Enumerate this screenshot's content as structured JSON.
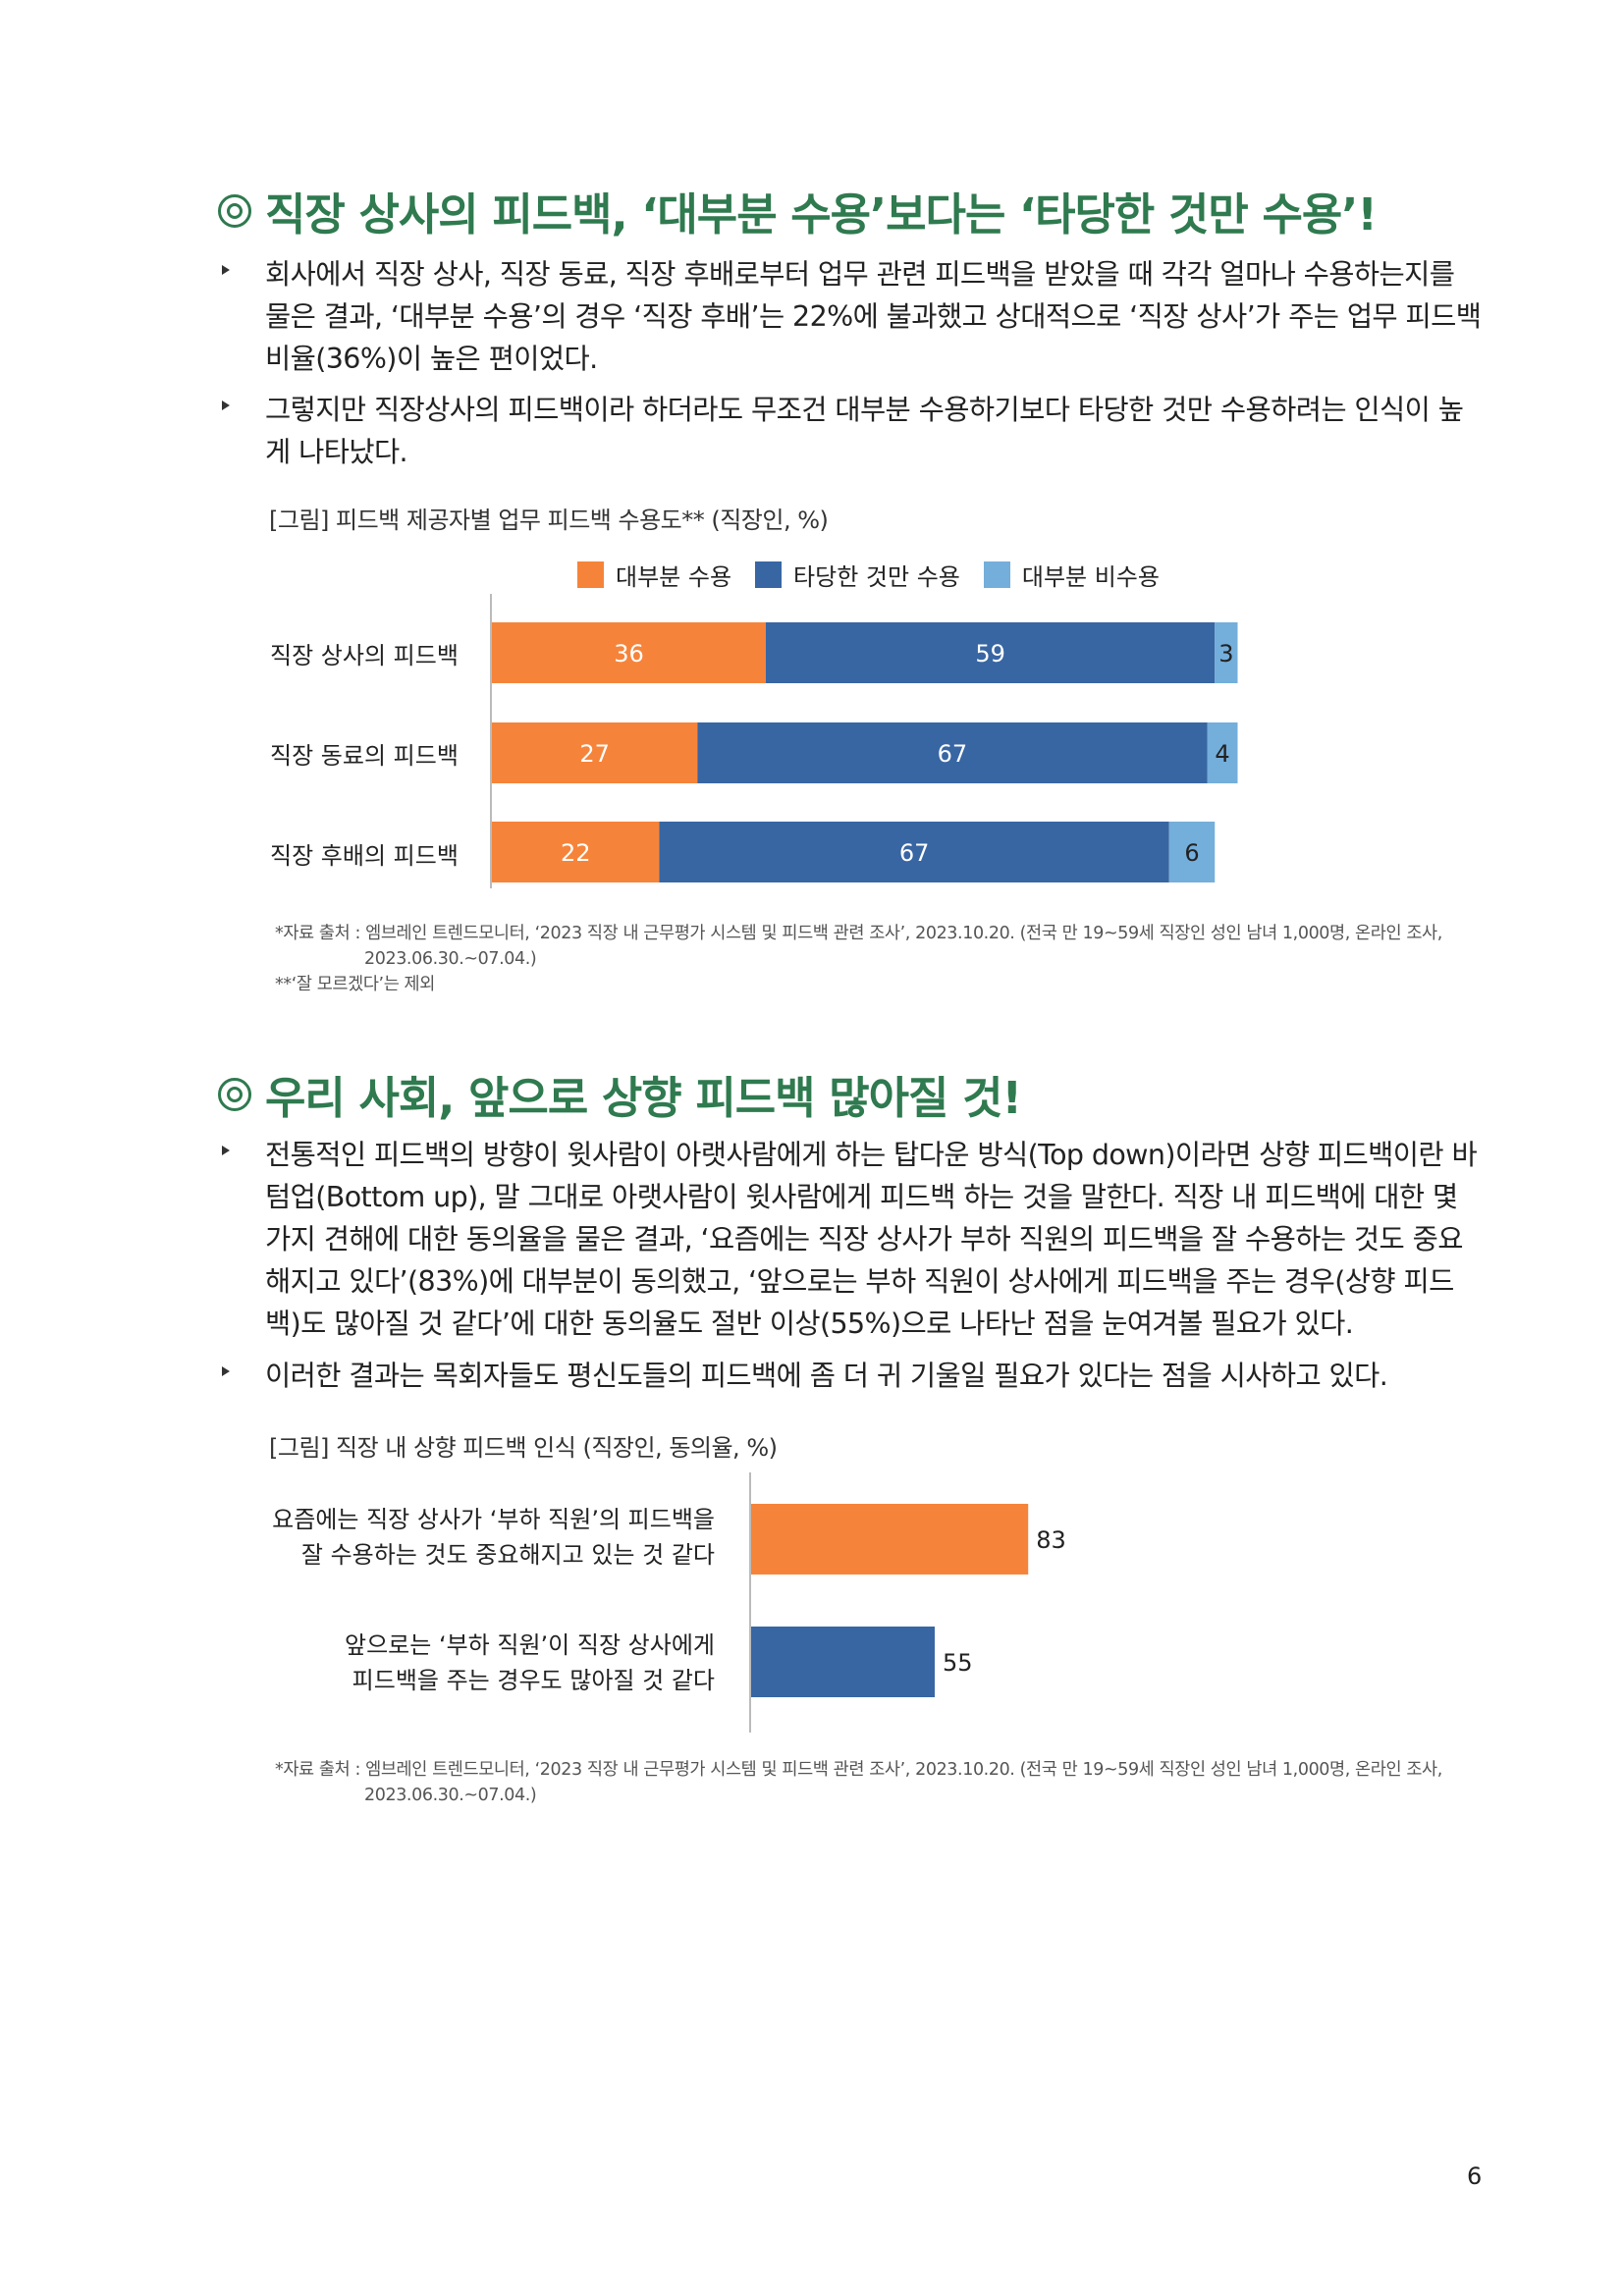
{
  "section1": {
    "heading": "직장 상사의 피드백, ‘대부분 수용’보다는 ‘타당한 것만 수용’!",
    "bullets": [
      "회사에서 직장 상사, 직장 동료, 직장 후배로부터 업무 관련 피드백을 받았을 때 각각 얼마나 수용하는지를 물은 결과, ‘대부분 수용’의 경우 ‘직장 후배’는 22%에 불과했고 상대적으로 ‘직장 상사’가 주는 업무 피드백 비율(36%)이 높은 편이었다.",
      "그렇지만 직장상사의 피드백이라 하더라도 무조건 대부분 수용하기보다 타당한 것만 수용하려는 인식이 높게 나타났다."
    ],
    "figure_caption": "[그림] 피드백 제공자별 업무 피드백 수용도** (직장인, %)",
    "source_line1": "*자료 출처 : 엠브레인 트렌드모니터, ‘2023 직장 내 근무평가 시스템 및 피드백 관련 조사’, 2023.10.20. (전국 만 19~59세 직장인 성인 남녀 1,000명, 온라인 조사,",
    "source_line2": "2023.06.30.~07.04.)",
    "note": "**‘잘 모르겠다’는 제외"
  },
  "section2": {
    "heading": "우리 사회, 앞으로 상향 피드백 많아질 것!",
    "bullets": [
      "전통적인 피드백의 방향이 윗사람이 아랫사람에게 하는 탑다운 방식(Top down)이라면 상향 피드백이란 바텀업(Bottom up), 말 그대로 아랫사람이 윗사람에게 피드백 하는 것을 말한다. 직장 내 피드백에 대한 몇 가지 견해에 대한 동의율을 물은 결과, ‘요즘에는 직장 상사가 부하 직원의 피드백을 잘 수용하는 것도 중요해지고 있다’(83%)에 대부분이 동의했고, ‘앞으로는 부하 직원이 상사에게 피드백을 주는 경우(상향 피드백)도 많아질 것 같다’에 대한 동의율도 절반 이상(55%)으로 나타난 점을 눈여겨볼 필요가 있다.",
      "이러한 결과는 목회자들도 평신도들의 피드백에 좀 더 귀 기울일 필요가 있다는 점을 시사하고 있다."
    ],
    "figure_caption": "[그림] 직장 내 상향 피드백 인식 (직장인, 동의율, %)",
    "source_line1": "*자료 출처 : 엠브레인 트렌드모니터, ‘2023 직장 내 근무평가 시스템 및 피드백 관련 조사’, 2023.10.20. (전국 만 19~59세 직장인 성인 남녀 1,000명, 온라인 조사,",
    "source_line2": "2023.06.30.~07.04.)"
  },
  "page_number": "6",
  "chart_data": [
    {
      "type": "bar",
      "orientation": "horizontal",
      "stacked": true,
      "categories": [
        "직장 상사의 피드백",
        "직장 동료의 피드백",
        "직장 후배의 피드백"
      ],
      "series": [
        {
          "name": "대부분 수용",
          "values": [
            36,
            27,
            22
          ],
          "color": "#f5843a"
        },
        {
          "name": "타당한 것만 수용",
          "values": [
            59,
            67,
            67
          ],
          "color": "#3866a3"
        },
        {
          "name": "대부분 비수용",
          "values": [
            3,
            4,
            6
          ],
          "color": "#74aedb"
        }
      ],
      "legend": "top",
      "grid": false
    },
    {
      "type": "bar",
      "orientation": "horizontal",
      "categories": [
        [
          "요즘에는 직장 상사가 ‘부하 직원’의 피드백을",
          "잘 수용하는 것도 중요해지고 있는 것 같다"
        ],
        [
          "앞으로는 ‘부하 직원’이 직장 상사에게",
          "피드백을 주는 경우도 많아질 것 같다"
        ]
      ],
      "values": [
        83,
        55
      ],
      "colors": [
        "#f5843a",
        "#3866a3"
      ],
      "grid": false
    }
  ]
}
